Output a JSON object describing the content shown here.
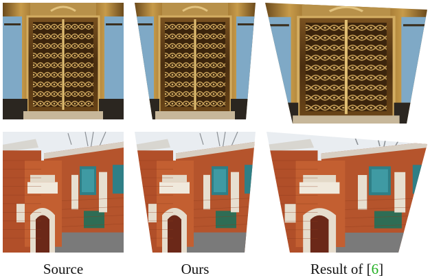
{
  "captions": {
    "source": "Source",
    "ours": "Ours",
    "result_prefix": "Result of [",
    "result_ref": "6",
    "result_suffix": "]"
  },
  "colors": {
    "brass": "#b58a3a",
    "brass_dark": "#5e3e14",
    "brick": "#b5542c",
    "window_teal": "#2f7f86",
    "sky": "#e9edf1",
    "ref_green": "#1fae1f"
  }
}
